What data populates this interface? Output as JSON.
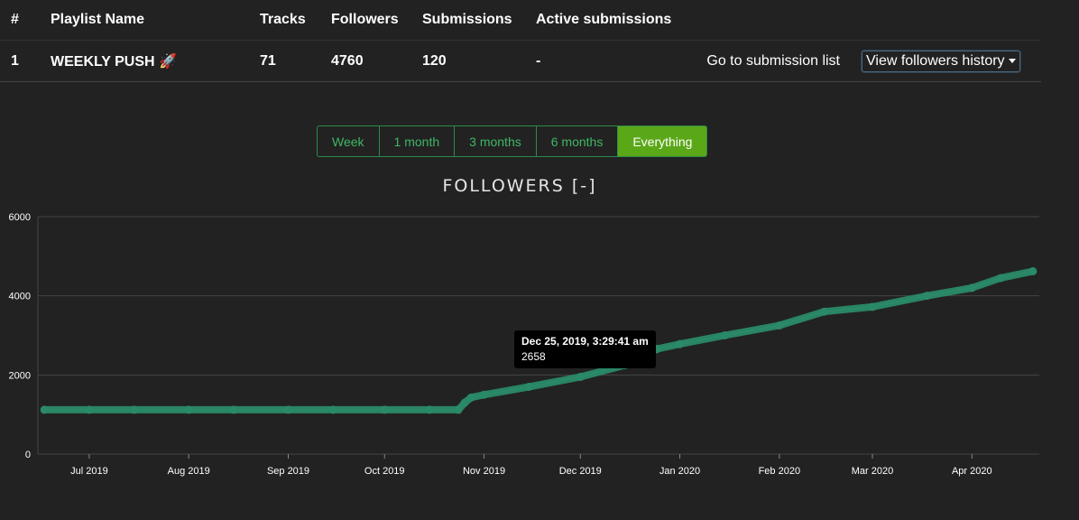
{
  "table": {
    "headers": [
      "#",
      "Playlist Name",
      "Tracks",
      "Followers",
      "Submissions",
      "Active submissions"
    ],
    "row": {
      "index": "1",
      "name": "WEEKLY PUSH 🚀",
      "tracks": "71",
      "followers": "4760",
      "submissions": "120",
      "active": "-",
      "submission_link": "Go to submission list",
      "history_dropdown": "View followers history"
    }
  },
  "ranges": {
    "options": [
      "Week",
      "1 month",
      "3 months",
      "6 months",
      "Everything"
    ],
    "selected": "Everything"
  },
  "tooltip": {
    "date": "Dec 25, 2019, 3:29:41 am",
    "value": "2658"
  },
  "colors": {
    "line": "#2a8a68",
    "accent": "#5aa817",
    "background": "#222222",
    "grid": "#444444"
  },
  "chart_data": {
    "type": "line",
    "title": "FOLLOWERS [-]",
    "xlabel": "",
    "ylabel": "",
    "ylim": [
      0,
      6000
    ],
    "yticks": [
      0,
      2000,
      4000,
      6000
    ],
    "xticks": [
      "Jul 2019",
      "Aug 2019",
      "Sep 2019",
      "Oct 2019",
      "Nov 2019",
      "Dec 2019",
      "Jan 2020",
      "Feb 2020",
      "Mar 2020",
      "Apr 2020"
    ],
    "grid": true,
    "series": [
      {
        "x": [
          "2019-06-17",
          "2019-07-01",
          "2019-07-15",
          "2019-08-01",
          "2019-08-15",
          "2019-09-01",
          "2019-09-15",
          "2019-10-01",
          "2019-10-15",
          "2019-10-24",
          "2019-10-26",
          "2019-10-28",
          "2019-11-01",
          "2019-11-15",
          "2019-12-01",
          "2019-12-15",
          "2019-12-25",
          "2020-01-01",
          "2020-01-15",
          "2020-02-01",
          "2020-02-15",
          "2020-03-01",
          "2020-03-18",
          "2020-04-01",
          "2020-04-10",
          "2020-04-20"
        ],
        "y": [
          1120,
          1120,
          1120,
          1120,
          1120,
          1120,
          1120,
          1120,
          1120,
          1120,
          1300,
          1430,
          1500,
          1700,
          1950,
          2250,
          2658,
          2780,
          3000,
          3250,
          3600,
          3720,
          4000,
          4200,
          4450,
          4620
        ]
      }
    ]
  }
}
